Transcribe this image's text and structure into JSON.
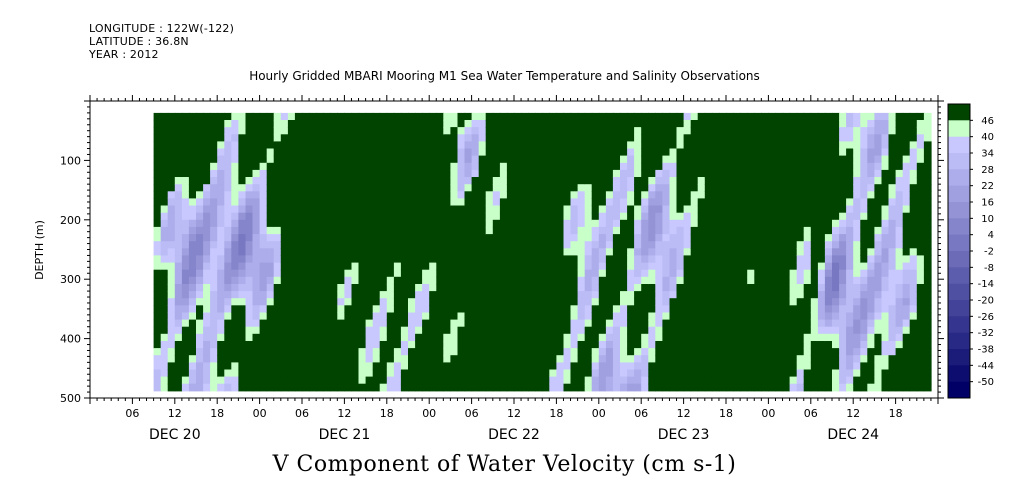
{
  "meta": {
    "longitude": "LONGITUDE : 122W(-122)",
    "latitude": "LATITUDE : 36.8N",
    "year": "YEAR : 2012"
  },
  "chart_data": {
    "type": "heatmap",
    "title": "Hourly Gridded MBARI Mooring M1 Sea Water Temperature and Salinity Observations",
    "xlabel": "V Component of Water Velocity (cm s-1)",
    "ylabel": "DEPTH (m)",
    "y_ticks": [
      "100",
      "200",
      "300",
      "400",
      "500"
    ],
    "ylim": [
      500,
      0
    ],
    "x_hour_ticks": [
      "06",
      "12",
      "18",
      "00",
      "06",
      "12",
      "18",
      "00",
      "06",
      "12",
      "18",
      "00",
      "06",
      "12",
      "18",
      "00",
      "06",
      "12",
      "18"
    ],
    "x_date_labels": [
      "DEC 20",
      "DEC 21",
      "DEC 22",
      "DEC 23",
      "DEC 24"
    ],
    "x_range_hours": [
      0,
      120
    ],
    "data_start_hour": 9,
    "data_depth_range": [
      20,
      480
    ],
    "colorbar": {
      "labels": [
        "46",
        "40",
        "34",
        "28",
        "22",
        "16",
        "10",
        "4",
        "-2",
        "-8",
        "-14",
        "-20",
        "-26",
        "-32",
        "-38",
        "-44",
        "-50"
      ],
      "min": -50,
      "max": 52,
      "step": 3
    },
    "colors": {
      "negative_strong": "#000066",
      "negative_weak": "#c8c8ff",
      "positive_weak": "#c8ffc8",
      "positive_strong": "#004400"
    }
  }
}
